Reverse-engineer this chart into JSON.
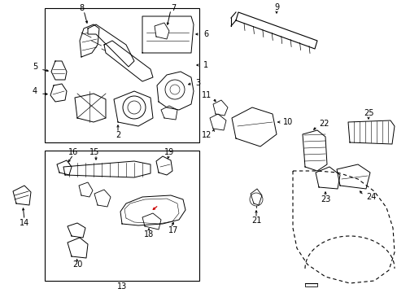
{
  "background_color": "#ffffff",
  "line_color": "#000000",
  "red_color": "#cc0000",
  "figsize": [
    4.89,
    3.6
  ],
  "dpi": 100
}
